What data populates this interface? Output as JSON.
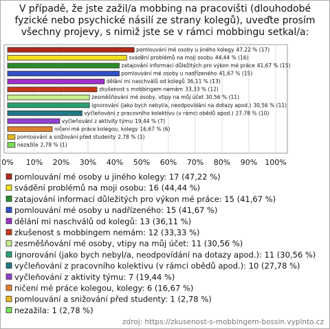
{
  "chart_data": {
    "type": "bar",
    "orientation": "horizontal",
    "title": "V případě, že jste zažil/a mobbing na pracovišti (dlouhodobé fyzické nebo psychické násilí ze strany kolegů), uveďte prosím všechny projevy, s nimiž jste se v rámci mobbingu setkal/a:",
    "categories": [
      "pomlouvání mé osoby u jiného kolegy",
      "svádění problémů na moji osobu",
      "zatajování informací důležitých pro výkon mé práce",
      "pomlouvání mé osoby u nadřízeného",
      "dělání mi naschválů od kolegů",
      "zkušenost s mobbingem nemám",
      "zesměšňování mé osoby, vtipy na můj účet",
      "ignorování (jako bych nebyl/a, neodpovídání na dotazy apod.)",
      "vyčleňování z pracovního kolektivu (v rámci obědů apod.)",
      "vyčleňování z aktivity týmu",
      "ničení mé práce kolegou, kolegy",
      "pomlouvání a snižování před studenty",
      "nezažila"
    ],
    "values": [
      47.22,
      44.44,
      41.67,
      41.67,
      36.11,
      33.33,
      30.56,
      30.56,
      27.78,
      19.44,
      16.67,
      2.78,
      2.78
    ],
    "value_labels": [
      "47,22 % (17)",
      "44,44 % (16)",
      "41,67 % (15)",
      "41,67 % (15)",
      "36,11 % (13)",
      "33,33 % (12)",
      "30,56 % (11)",
      "30,56 % (11)",
      "27,78 % (10)",
      "19,44 % (7)",
      "16,67 % (6)",
      "2,78 % (1)",
      "2,78 % (1)"
    ],
    "legend_labels": [
      "pomlouvání mé osoby u jiného kolegy: 17 (47,22 %)",
      "svádění problémů na moji osobu: 16 (44,44 %)",
      "zatajování informací důležitých pro výkon mé práce: 15 (41,67 %)",
      "pomlouvání mé osoby u nadřízeného: 15 (41,67 %)",
      "dělání mi naschválů od kolegů: 13 (36,11 %)",
      "zkušenost s mobbingem nemám: 12 (33,33 %)",
      "zesměšňování mé osoby, vtipy na můj účet: 11 (30,56 %)",
      "ignorování (jako bych nebyl/a, neodpovídání na dotazy apod.): 11 (30,56 %)",
      "vyčleňování z pracovního kolektivu (v rámci obědů apod.): 10 (27,78 %)",
      "vyčleňování z aktivity týmu: 7 (19,44 %)",
      "ničení mé práce kolegou, kolegy: 6 (16,67 %)",
      "pomlouvání a snižování před studenty: 1 (2,78 %)",
      "nezažila: 1 (2,78 %)"
    ],
    "colors": [
      "#b02818",
      "#f2e020",
      "#2a8c2a",
      "#3050c8",
      "#a030c8",
      "#c83818",
      "#c8f08c",
      "#28a070",
      "#207888",
      "#9040d0",
      "#e08030",
      "#e8b820",
      "#78e058"
    ],
    "xlim": [
      0,
      100
    ],
    "xticks": [
      {
        "value": 0,
        "label": "0%"
      },
      {
        "value": 10,
        "label": "10%"
      },
      {
        "value": 20,
        "label": "20%"
      },
      {
        "value": 30,
        "label": "30%"
      },
      {
        "value": 40,
        "label": "40%"
      },
      {
        "value": 50,
        "label": "50%"
      },
      {
        "value": 60,
        "label": "60%"
      },
      {
        "value": 70,
        "label": "70%"
      },
      {
        "value": 80,
        "label": "80%"
      },
      {
        "value": 90,
        "label": "90%"
      },
      {
        "value": 100,
        "label": "100%"
      }
    ],
    "grid": true,
    "source": "zdroj: https://zkusenost-s-mobbingem-bossin.vyplnto.cz"
  }
}
